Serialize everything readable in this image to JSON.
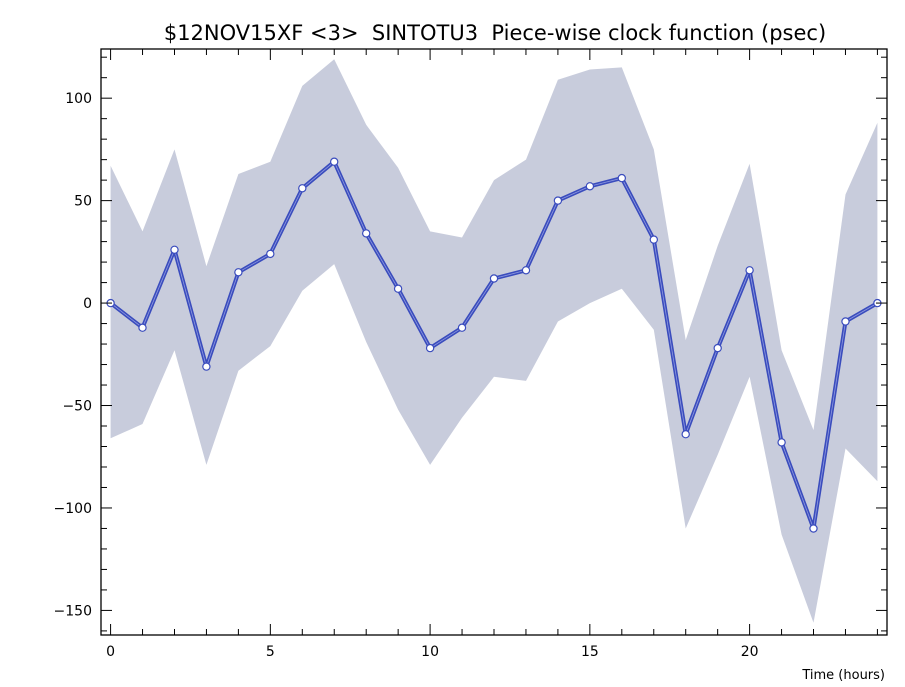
{
  "chart_data": {
    "type": "line",
    "title": "$12NOV15XF <3>  SINTOTU3  Piece-wise clock function (psec)",
    "xlabel": "Time (hours)",
    "ylabel": "",
    "xlim": [
      -0.3,
      24.3
    ],
    "ylim": [
      -162,
      124
    ],
    "x_ticks": [
      0,
      5,
      10,
      15,
      20
    ],
    "y_ticks": [
      -150,
      -100,
      -50,
      0,
      50,
      100
    ],
    "x_tick_labels": [
      "0",
      "5",
      "10",
      "15",
      "20"
    ],
    "y_tick_labels": [
      "−150",
      "−100",
      "−50",
      "0",
      "50",
      "100"
    ],
    "grid": false,
    "x": [
      0,
      1,
      2,
      3,
      4,
      5,
      6,
      7,
      8,
      9,
      10,
      11,
      12,
      13,
      14,
      15,
      16,
      17,
      18,
      19,
      20,
      21,
      22,
      23,
      24
    ],
    "series": [
      {
        "values": [
          0,
          -12,
          26,
          -31,
          15,
          24,
          56,
          69,
          34,
          7,
          -22,
          -12,
          12,
          16,
          50,
          57,
          61,
          31,
          -64,
          -22,
          16,
          -68,
          -110,
          -9,
          0
        ]
      }
    ],
    "band": {
      "upper": [
        67,
        35,
        75,
        18,
        63,
        69,
        106,
        119,
        87,
        66,
        35,
        32,
        60,
        70,
        109,
        114,
        115,
        75,
        -18,
        28,
        68,
        -23,
        -62,
        53,
        88
      ],
      "lower": [
        -66,
        -59,
        -23,
        -79,
        -33,
        -21,
        6,
        19,
        -19,
        -52,
        -79,
        -56,
        -36,
        -38,
        -9,
        0,
        7,
        -13,
        -110,
        -74,
        -36,
        -113,
        -156,
        -71,
        -87
      ]
    },
    "colors": {
      "line": "#3a4cbd",
      "band": "#c8ccdc",
      "marker_fill": "#ffffff",
      "axis": "#000000"
    }
  }
}
